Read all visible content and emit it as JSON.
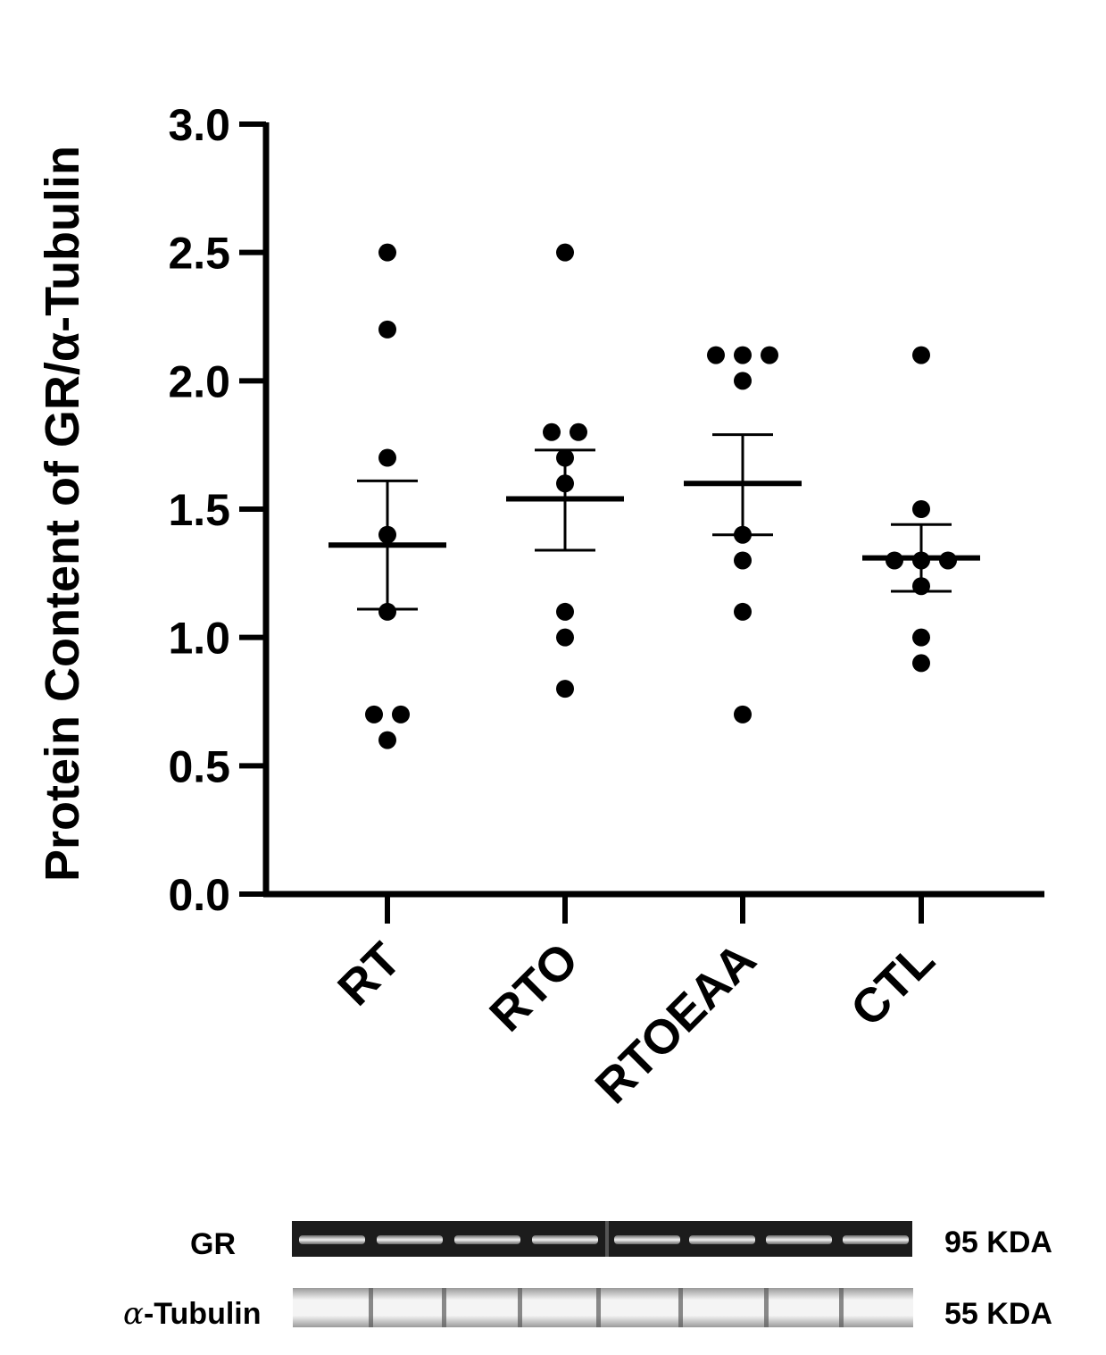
{
  "chart_data": {
    "type": "scatter",
    "title": "",
    "xlabel": "",
    "ylabel": "Protein Content of GR/α-Tubulin",
    "ylim": [
      0,
      3.0
    ],
    "yticks": [
      "0.0",
      "0.5",
      "1.0",
      "1.5",
      "2.0",
      "2.5",
      "3.0"
    ],
    "categories": [
      "RT",
      "RTO",
      "RTOEAA",
      "CTL"
    ],
    "points": [
      [
        2.5,
        2.2,
        1.7,
        1.4,
        1.1,
        0.7,
        0.7,
        0.6
      ],
      [
        2.5,
        1.8,
        1.8,
        1.7,
        1.6,
        1.1,
        1.0,
        0.8
      ],
      [
        2.1,
        2.1,
        2.1,
        2.0,
        1.4,
        1.3,
        1.1,
        0.7
      ],
      [
        2.1,
        1.5,
        1.3,
        1.3,
        1.3,
        1.2,
        1.0,
        0.9
      ]
    ],
    "mean": [
      1.36,
      1.54,
      1.6,
      1.31
    ],
    "sem_upper": [
      1.61,
      1.73,
      1.79,
      1.44
    ],
    "sem_lower": [
      1.11,
      1.34,
      1.4,
      1.18
    ],
    "grid": false,
    "legend": "none"
  },
  "blot": {
    "rows": [
      {
        "label": "GR",
        "size": "95 KDA"
      },
      {
        "label": "-Tubulin",
        "greek": "α",
        "size": "55 KDA"
      }
    ]
  }
}
